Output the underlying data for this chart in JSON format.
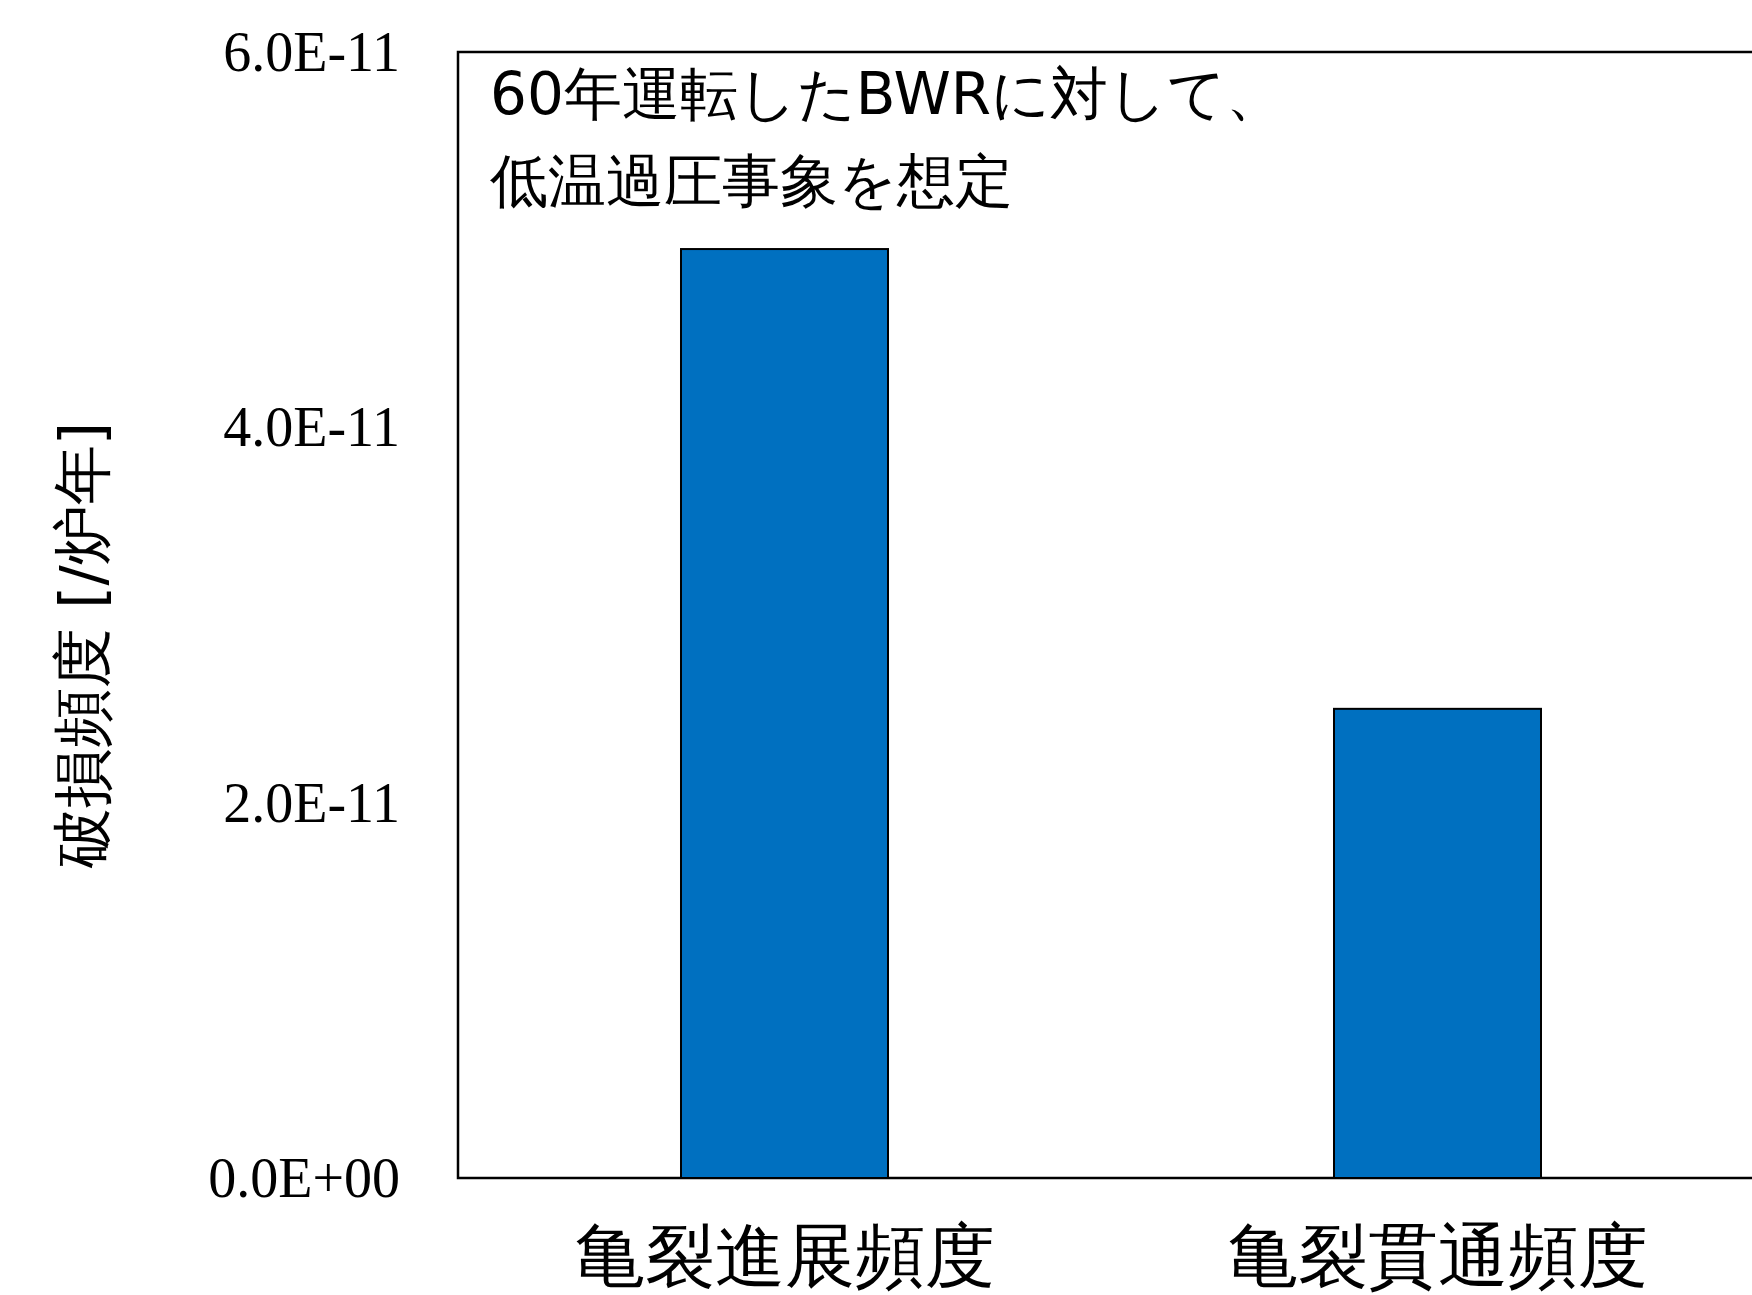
{
  "chart_data": {
    "type": "bar",
    "ylabel": "破損頻度 [/炉年]",
    "categories": [
      "亀裂進展頻度",
      "亀裂貫通頻度"
    ],
    "values": [
      4.95e-11,
      2.5e-11
    ],
    "color": "#0070c0",
    "ylim": [
      0,
      6e-11
    ],
    "yticks": [
      {
        "value": 0,
        "label": "0.0E+00"
      },
      {
        "value": 2e-11,
        "label": "2.0E-11"
      },
      {
        "value": 4e-11,
        "label": "4.0E-11"
      },
      {
        "value": 6e-11,
        "label": "6.0E-11"
      }
    ],
    "annotations": [
      "60年運転したBWRに対して、",
      "低温過圧事象を想定"
    ],
    "grid": false
  }
}
